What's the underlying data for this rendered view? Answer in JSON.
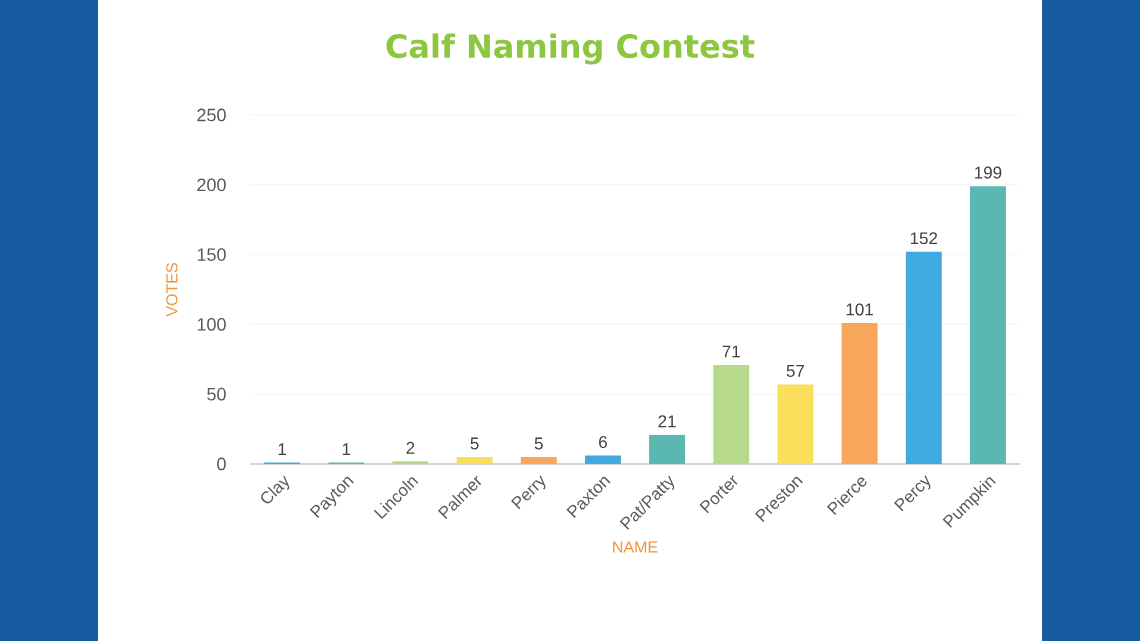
{
  "chart_data": {
    "type": "bar",
    "title": "Calf Naming Contest",
    "xlabel": "NAME",
    "ylabel": "VOTES",
    "categories": [
      "Clay",
      "Payton",
      "Lincoln",
      "Palmer",
      "Perry",
      "Paxton",
      "Pat/Patty",
      "Porter",
      "Preston",
      "Pierce",
      "Percy",
      "Pumpkin"
    ],
    "values": [
      1,
      1,
      2,
      5,
      5,
      6,
      21,
      71,
      57,
      101,
      152,
      199
    ],
    "colors": [
      "#3fa9e0",
      "#5bb8b0",
      "#b7d98b",
      "#f9df5a",
      "#f7a65a",
      "#3fa9e0",
      "#5bb8b0",
      "#b7d98b",
      "#f9df5a",
      "#f7a65a",
      "#3fa9e0",
      "#5bb8b0"
    ],
    "ylim": [
      0,
      250
    ],
    "yticks": [
      0,
      50,
      100,
      150,
      200,
      250
    ],
    "grid": "y",
    "data_labels": true
  }
}
